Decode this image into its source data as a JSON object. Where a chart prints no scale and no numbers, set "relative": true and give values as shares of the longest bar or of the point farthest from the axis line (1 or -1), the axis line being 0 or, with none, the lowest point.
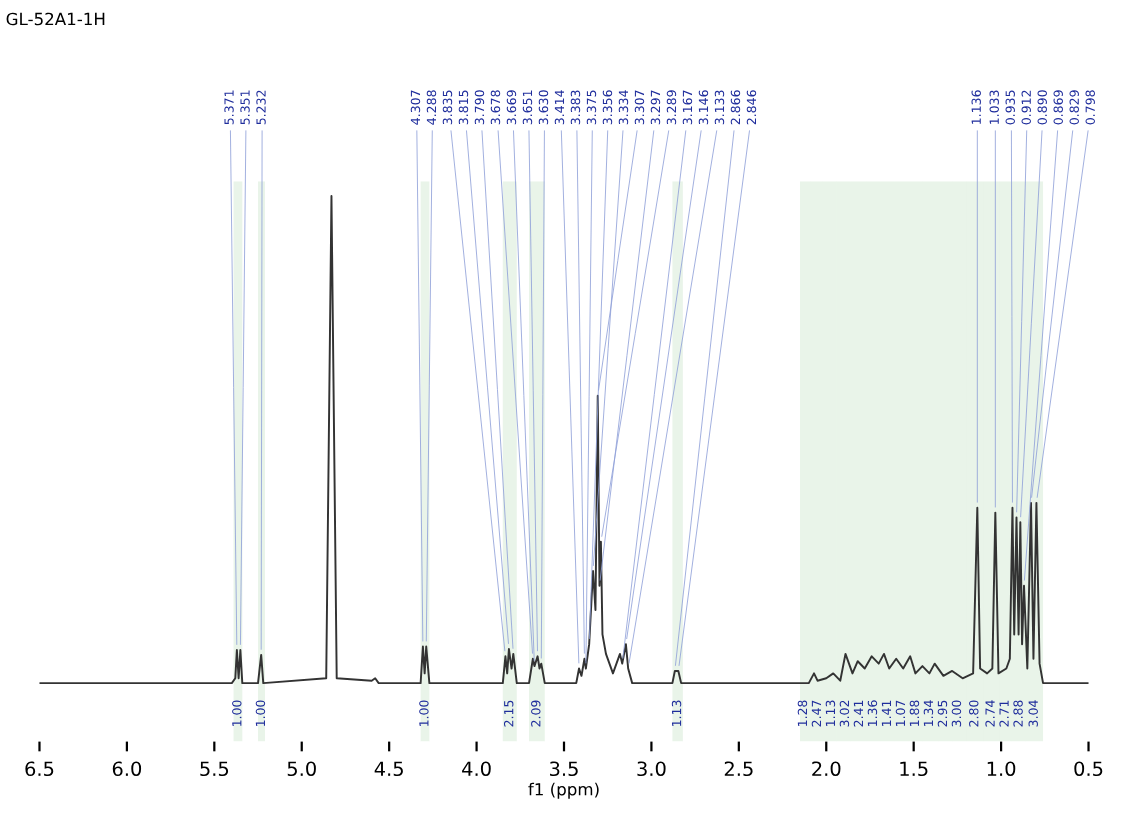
{
  "chart_data": {
    "type": "line",
    "title": "GL-52A1-1H",
    "xlabel": "f1 (ppm)",
    "relative": true,
    "xlim": [
      6.5,
      0.5
    ],
    "xticks": [
      6.5,
      {
        "value": 6,
        "label": "6.0"
      },
      5.5,
      {
        "value": 5,
        "label": "5.0"
      },
      4.5,
      {
        "value": 4,
        "label": "4.0"
      },
      3.5,
      {
        "value": 3,
        "label": "3.0"
      },
      2.5,
      {
        "value": 2,
        "label": "2.0"
      },
      1.5,
      {
        "value": 1,
        "label": "1.0"
      },
      0.5
    ],
    "bands": [
      {
        "axis": "x",
        "from": 5.39,
        "to": 5.34,
        "label": "1.00"
      },
      {
        "axis": "x",
        "from": 5.25,
        "to": 5.21,
        "label": "1.00"
      },
      {
        "axis": "x",
        "from": 4.32,
        "to": 4.27,
        "label": "1.00"
      },
      {
        "axis": "x",
        "from": 3.85,
        "to": 3.77,
        "label": "2.15"
      },
      {
        "axis": "x",
        "from": 3.7,
        "to": 3.61,
        "label": "2.09"
      },
      {
        "axis": "x",
        "from": 2.88,
        "to": 2.82,
        "label": "1.13"
      },
      {
        "axis": "x",
        "from": 2.15,
        "to": 2.09,
        "label": "1.28"
      },
      {
        "axis": "x",
        "from": 2.09,
        "to": 2.02,
        "label": "2.47"
      },
      {
        "axis": "x",
        "from": 2.02,
        "to": 1.94,
        "label": "1.13"
      },
      {
        "axis": "x",
        "from": 1.94,
        "to": 1.86,
        "label": "3.02"
      },
      {
        "axis": "x",
        "from": 1.86,
        "to": 1.77,
        "label": "2.41"
      },
      {
        "axis": "x",
        "from": 1.77,
        "to": 1.69,
        "label": "1.36"
      },
      {
        "axis": "x",
        "from": 1.69,
        "to": 1.61,
        "label": "1.41"
      },
      {
        "axis": "x",
        "from": 1.61,
        "to": 1.53,
        "label": "1.07"
      },
      {
        "axis": "x",
        "from": 1.53,
        "to": 1.45,
        "label": "1.88"
      },
      {
        "axis": "x",
        "from": 1.45,
        "to": 1.36,
        "label": "1.34"
      },
      {
        "axis": "x",
        "from": 1.36,
        "to": 1.28,
        "label": "2.95"
      },
      {
        "axis": "x",
        "from": 1.28,
        "to": 1.2,
        "label": "3.00"
      },
      {
        "axis": "x",
        "from": 1.2,
        "to": 1.1,
        "label": "2.80"
      },
      {
        "axis": "x",
        "from": 1.1,
        "to": 1.01,
        "label": "2.74"
      },
      {
        "axis": "x",
        "from": 1.01,
        "to": 0.94,
        "label": "2.71"
      },
      {
        "axis": "x",
        "from": 0.94,
        "to": 0.86,
        "label": "2.88"
      },
      {
        "axis": "x",
        "from": 0.86,
        "to": 0.76,
        "label": "3.04"
      }
    ],
    "series": [
      {
        "color": "#333333",
        "x": [
          6.5,
          5.4,
          5.38,
          5.371,
          5.361,
          5.351,
          5.34,
          5.25,
          5.232,
          5.22,
          4.86,
          4.83,
          4.8,
          4.6,
          4.58,
          4.56,
          4.32,
          4.307,
          4.297,
          4.288,
          4.27,
          3.85,
          3.835,
          3.825,
          3.815,
          3.8,
          3.79,
          3.77,
          3.7,
          3.678,
          3.669,
          3.651,
          3.64,
          3.63,
          3.61,
          3.43,
          3.414,
          3.4,
          3.383,
          3.375,
          3.356,
          3.334,
          3.32,
          3.307,
          3.297,
          3.289,
          3.28,
          3.26,
          3.22,
          3.18,
          3.167,
          3.146,
          3.133,
          3.11,
          2.88,
          2.866,
          2.846,
          2.83,
          2.1,
          2.07,
          2.05,
          2.0,
          1.96,
          1.92,
          1.89,
          1.85,
          1.82,
          1.78,
          1.74,
          1.7,
          1.67,
          1.64,
          1.6,
          1.56,
          1.52,
          1.49,
          1.45,
          1.41,
          1.38,
          1.33,
          1.28,
          1.22,
          1.16,
          1.136,
          1.12,
          1.08,
          1.05,
          1.033,
          1.015,
          0.97,
          0.95,
          0.935,
          0.925,
          0.912,
          0.9,
          0.89,
          0.88,
          0.869,
          0.85,
          0.829,
          0.815,
          0.798,
          0.78,
          0.76,
          0.5
        ],
        "values": [
          0,
          0,
          0.01,
          0.068,
          0.01,
          0.068,
          0,
          0,
          0.058,
          0,
          0.01,
          1.0,
          0.01,
          0.005,
          0.01,
          0,
          0,
          0.075,
          0.02,
          0.075,
          0,
          0,
          0.055,
          0.02,
          0.07,
          0.03,
          0.06,
          0,
          0,
          0.05,
          0.035,
          0.055,
          0.03,
          0.04,
          0,
          0,
          0.03,
          0.015,
          0.05,
          0.03,
          0.08,
          0.23,
          0.15,
          0.59,
          0.2,
          0.29,
          0.1,
          0.06,
          0.02,
          0.06,
          0.04,
          0.08,
          0.03,
          0,
          0,
          0.025,
          0.025,
          0,
          0,
          0.02,
          0.005,
          0.01,
          0.02,
          0.005,
          0.06,
          0.02,
          0.045,
          0.03,
          0.055,
          0.04,
          0.06,
          0.03,
          0.05,
          0.03,
          0.055,
          0.02,
          0.035,
          0.02,
          0.04,
          0.015,
          0.025,
          0.01,
          0.02,
          0.36,
          0.03,
          0.02,
          0.03,
          0.35,
          0.02,
          0.03,
          0.05,
          0.36,
          0.1,
          0.34,
          0.1,
          0.33,
          0.08,
          0.2,
          0.03,
          0.37,
          0.05,
          0.37,
          0.04,
          0,
          0
        ]
      }
    ],
    "annotations": [
      {
        "text": "5.371",
        "x": 5.371,
        "y": 0.068
      },
      {
        "text": "5.351",
        "x": 5.351,
        "y": 0.068
      },
      {
        "text": "5.232",
        "x": 5.232,
        "y": 0.058
      },
      {
        "text": "4.307",
        "x": 4.307,
        "y": 0.075
      },
      {
        "text": "4.288",
        "x": 4.288,
        "y": 0.075
      },
      {
        "text": "3.835",
        "x": 3.835,
        "y": 0.055
      },
      {
        "text": "3.815",
        "x": 3.815,
        "y": 0.07
      },
      {
        "text": "3.790",
        "x": 3.79,
        "y": 0.06
      },
      {
        "text": "3.678",
        "x": 3.678,
        "y": 0.05
      },
      {
        "text": "3.669",
        "x": 3.669,
        "y": 0.035
      },
      {
        "text": "3.651",
        "x": 3.651,
        "y": 0.055
      },
      {
        "text": "3.630",
        "x": 3.63,
        "y": 0.04
      },
      {
        "text": "3.414",
        "x": 3.414,
        "y": 0.03
      },
      {
        "text": "3.383",
        "x": 3.383,
        "y": 0.05
      },
      {
        "text": "3.375",
        "x": 3.375,
        "y": 0.03
      },
      {
        "text": "3.356",
        "x": 3.356,
        "y": 0.08
      },
      {
        "text": "3.334",
        "x": 3.334,
        "y": 0.23
      },
      {
        "text": "3.307",
        "x": 3.307,
        "y": 0.59
      },
      {
        "text": "3.297",
        "x": 3.297,
        "y": 0.2
      },
      {
        "text": "3.289",
        "x": 3.289,
        "y": 0.29
      },
      {
        "text": "3.167",
        "x": 3.167,
        "y": 0.04
      },
      {
        "text": "3.146",
        "x": 3.146,
        "y": 0.08
      },
      {
        "text": "3.133",
        "x": 3.133,
        "y": 0.03
      },
      {
        "text": "2.866",
        "x": 2.866,
        "y": 0.025
      },
      {
        "text": "2.846",
        "x": 2.846,
        "y": 0.025
      },
      {
        "text": "1.136",
        "x": 1.136,
        "y": 0.36
      },
      {
        "text": "1.033",
        "x": 1.033,
        "y": 0.35
      },
      {
        "text": "0.935",
        "x": 0.935,
        "y": 0.36
      },
      {
        "text": "0.912",
        "x": 0.912,
        "y": 0.34
      },
      {
        "text": "0.890",
        "x": 0.89,
        "y": 0.33
      },
      {
        "text": "0.869",
        "x": 0.869,
        "y": 0.2
      },
      {
        "text": "0.829",
        "x": 0.829,
        "y": 0.37
      },
      {
        "text": "0.798",
        "x": 0.798,
        "y": 0.37
      }
    ]
  }
}
